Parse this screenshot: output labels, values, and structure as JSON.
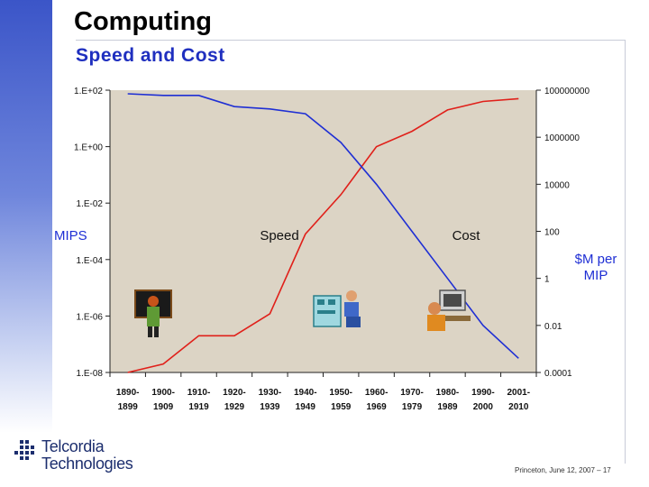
{
  "slide": {
    "title": "Computing",
    "subtitle": "Speed and Cost",
    "footer": "Princeton, June 12, 2007 – 17",
    "logo_line1": "Telcordia",
    "logo_line2": "Technologies"
  },
  "chart_data": {
    "type": "line",
    "background": "#dcd4c5",
    "categories": [
      "1890-\n1899",
      "1900-\n1909",
      "1910-\n1919",
      "1920-\n1929",
      "1930-\n1939",
      "1940-\n1949",
      "1950-\n1959",
      "1960-\n1969",
      "1970-\n1979",
      "1980-\n1989",
      "1990-\n2000",
      "2001-\n2010"
    ],
    "left_axis": {
      "label": "MIPS",
      "scale": "log",
      "range": [
        1e-08,
        100
      ],
      "ticks": [
        "1.E-08",
        "1.E-06",
        "1.E-04",
        "1.E-02",
        "1.E+00",
        "1.E+02"
      ]
    },
    "right_axis": {
      "label": "$M per\nMIP",
      "scale": "log",
      "range": [
        0.0001,
        100000000.0
      ],
      "ticks": [
        "0.0001",
        "0.01",
        "1",
        "100",
        "10000",
        "1000000",
        "100000000"
      ]
    },
    "series": [
      {
        "name": "Speed",
        "axis": "left",
        "color": "#e0201a",
        "values": [
          1e-08,
          2e-08,
          2e-07,
          2e-07,
          1.2e-06,
          0.0008,
          0.02,
          1.0,
          3.5,
          20,
          40,
          50
        ]
      },
      {
        "name": "Cost",
        "axis": "right",
        "color": "#1f2fd4",
        "values": [
          70000000.0,
          60000000.0,
          60000000.0,
          20000000.0,
          16000000.0,
          10000000.0,
          600000.0,
          10000.0,
          100,
          1,
          0.01,
          0.0004
        ]
      }
    ],
    "annotations": [
      "Speed",
      "Cost"
    ],
    "grid": false
  }
}
